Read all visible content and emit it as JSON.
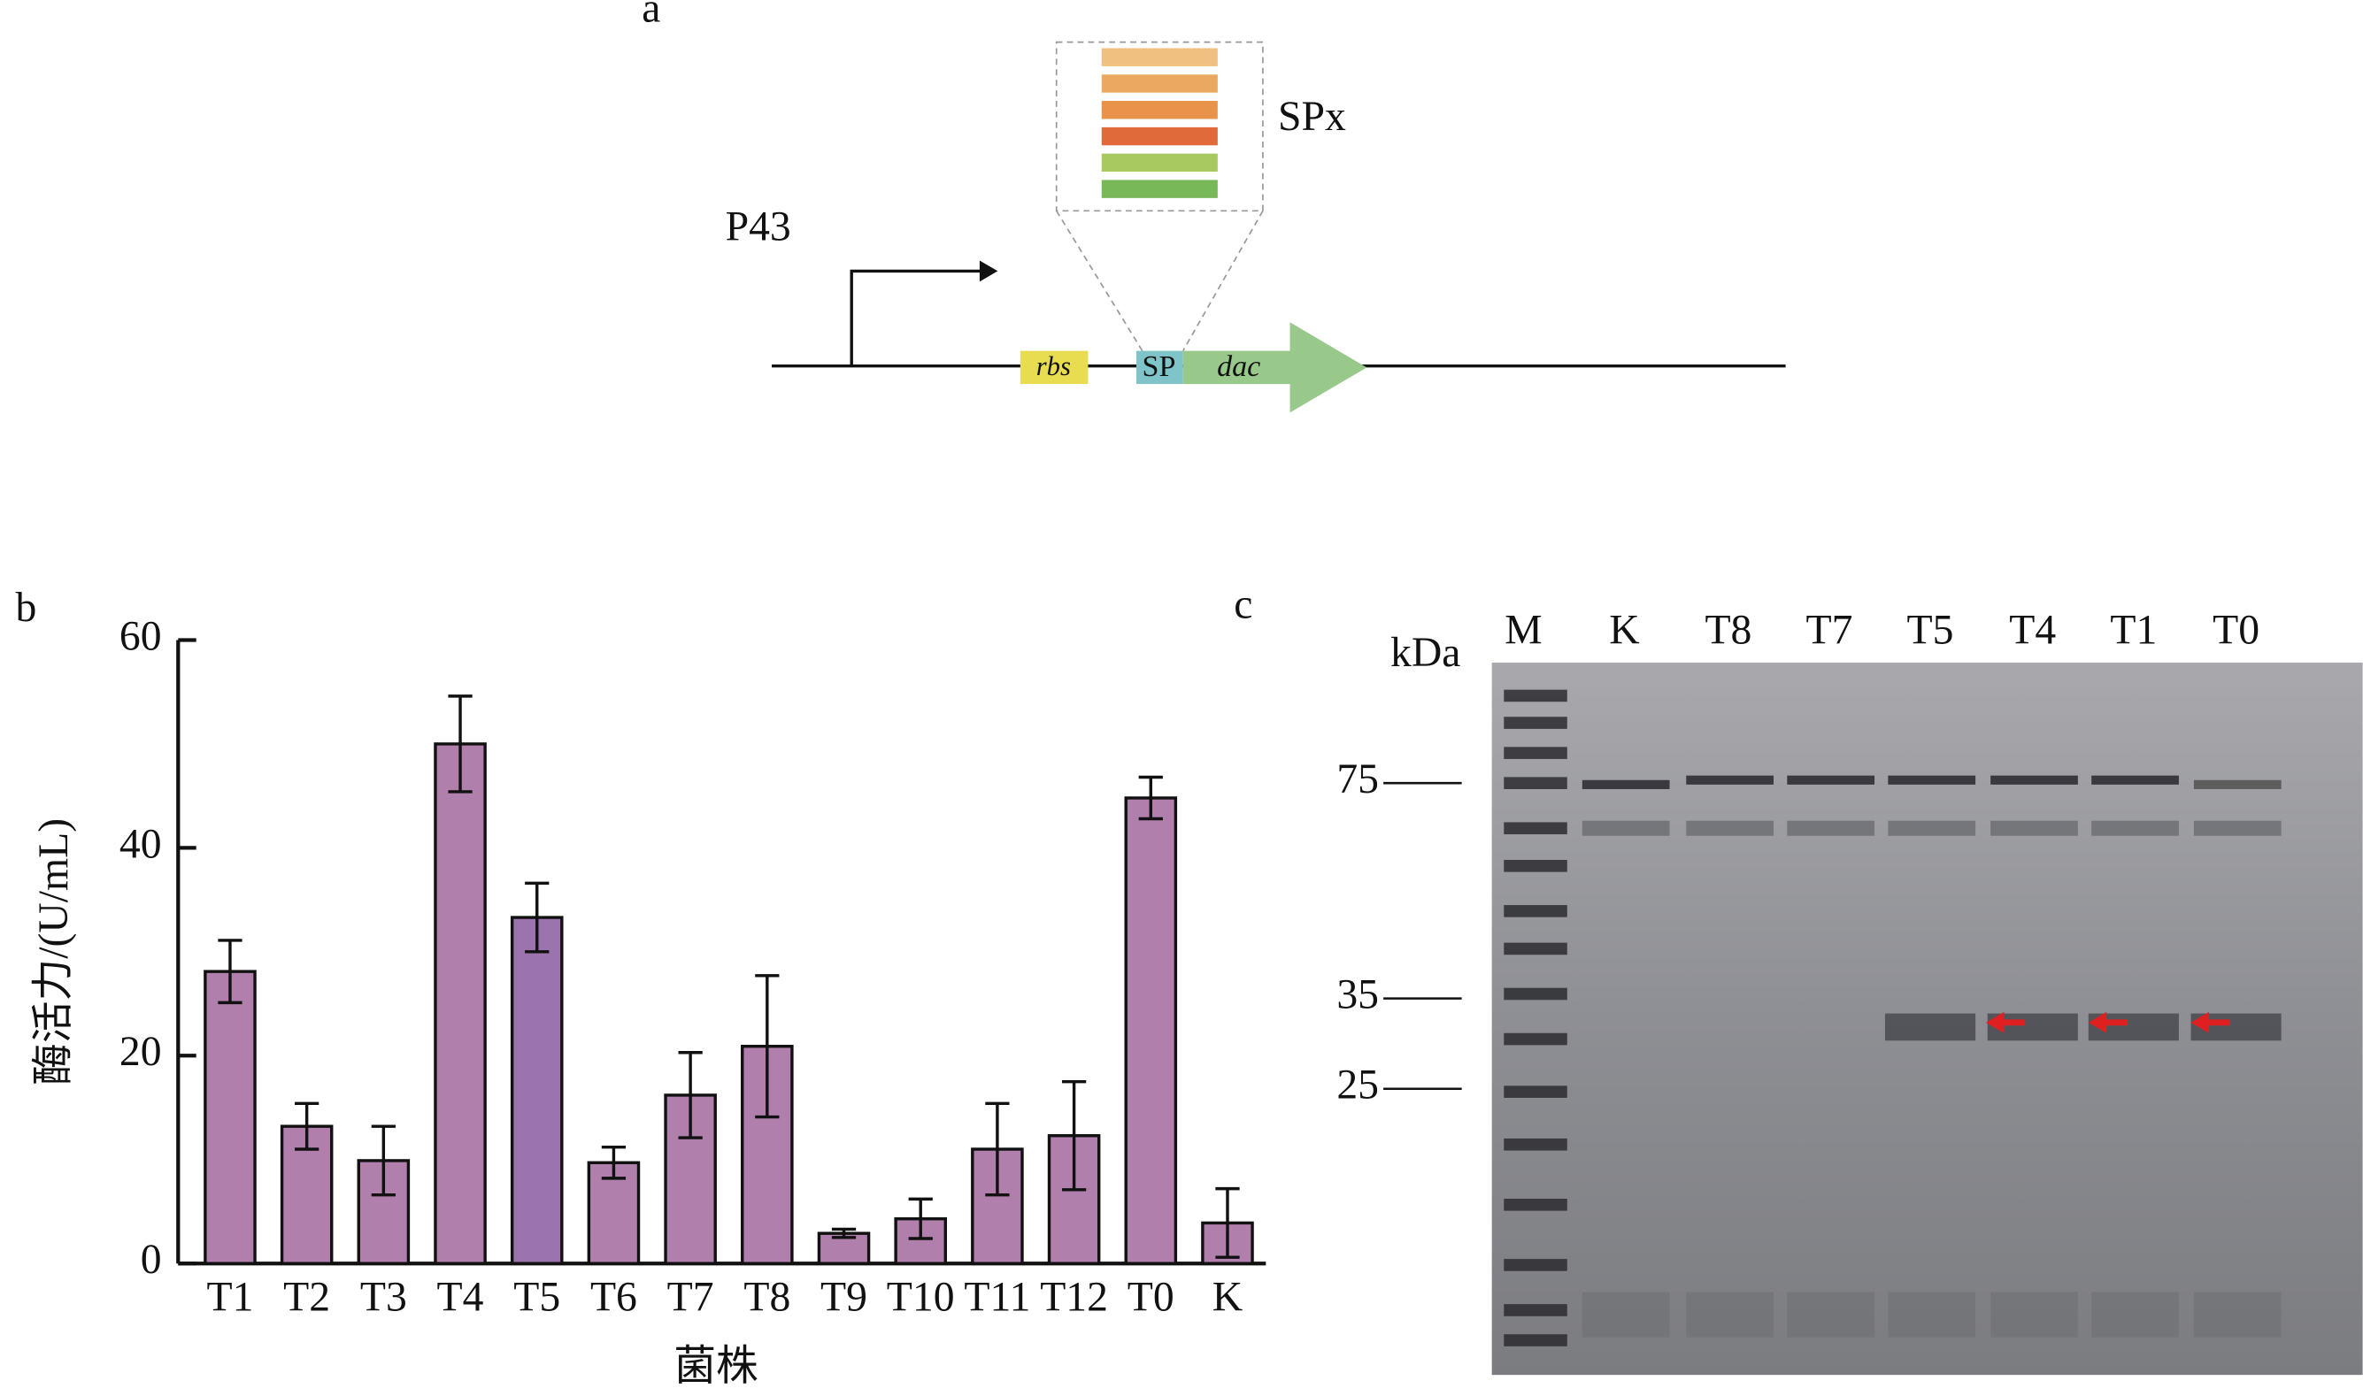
{
  "diagram": {
    "panel_label": "a",
    "promoter": "P43",
    "rbs": "rbs",
    "sp": "SP",
    "gene": "dac",
    "library": "SPx",
    "stripe_colors": [
      "#f0c080",
      "#eba860",
      "#e8924a",
      "#e06a3a",
      "#a8c860",
      "#78b858"
    ]
  },
  "chart_data": {
    "type": "bar",
    "panel_label": "b",
    "x_label": "菌株",
    "y_label": "酶活力/(U/mL)",
    "categories": [
      "T1",
      "T2",
      "T3",
      "T4",
      "T5",
      "T6",
      "T7",
      "T8",
      "T9",
      "T10",
      "T11",
      "T12",
      "T0",
      "K"
    ],
    "values": [
      28.1,
      13.2,
      9.9,
      50,
      33.3,
      9.7,
      16.2,
      20.9,
      2.9,
      4.3,
      11,
      12.3,
      44.8,
      3.9
    ],
    "errors": [
      3,
      2.2,
      3.3,
      4.6,
      3.3,
      1.5,
      4.1,
      6.8,
      0.4,
      1.9,
      4.4,
      5.2,
      2,
      3.3
    ],
    "colors": [
      "#b07fab",
      "#b07fab",
      "#b07fab",
      "#b07fab",
      "#9b74ad",
      "#b07fab",
      "#b07fab",
      "#b07fab",
      "#b07fab",
      "#b07fab",
      "#b07fab",
      "#b07fab",
      "#b07fab",
      "#b07fab"
    ],
    "ylim": [
      0,
      60
    ],
    "yticks": [
      0,
      20,
      40,
      60
    ]
  },
  "gel": {
    "panel_label": "c",
    "unit": "kDa",
    "lanes": [
      "M",
      "K",
      "T8",
      "T7",
      "T5",
      "T4",
      "T1",
      "T0"
    ],
    "markers": [
      75,
      35,
      25
    ]
  }
}
